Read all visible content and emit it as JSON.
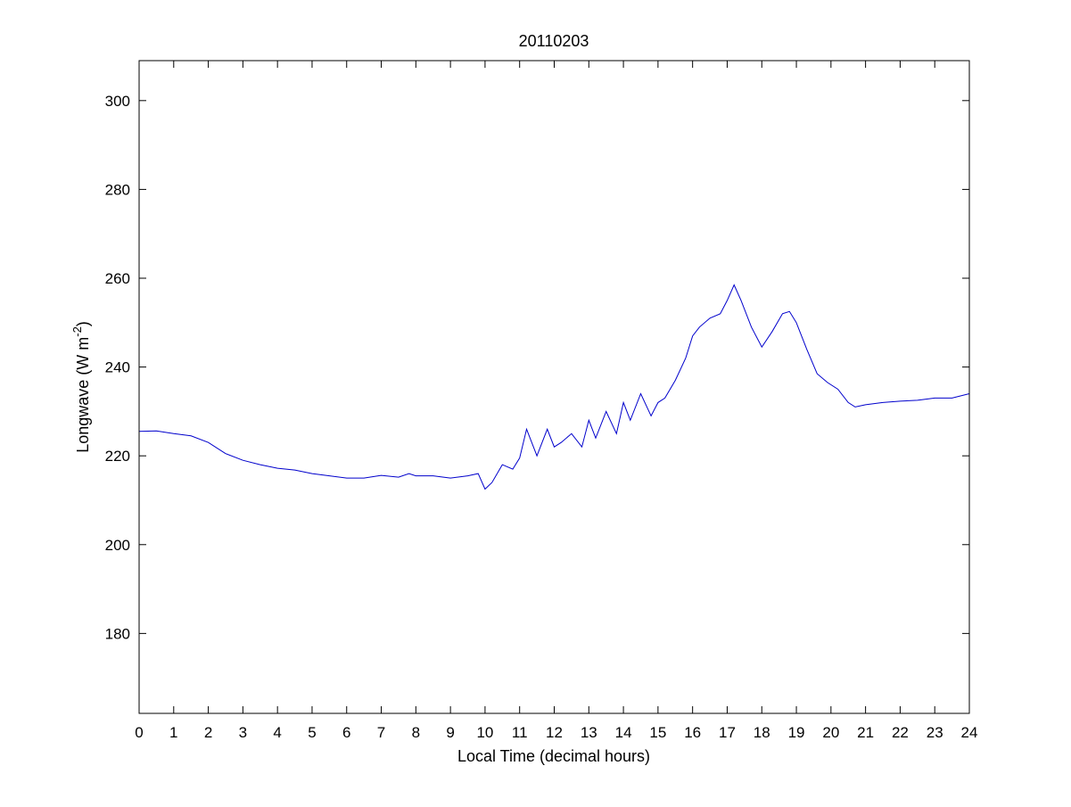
{
  "chart_data": {
    "type": "line",
    "title": "20110203",
    "xlabel": "Local Time (decimal hours)",
    "ylabel": {
      "base": "Longwave (W m",
      "exponent": "-2",
      "close": ")"
    },
    "xlim": [
      0,
      24
    ],
    "ylim": [
      162,
      309
    ],
    "xticks": [
      0,
      1,
      2,
      3,
      4,
      5,
      6,
      7,
      8,
      9,
      10,
      11,
      12,
      13,
      14,
      15,
      16,
      17,
      18,
      19,
      20,
      21,
      22,
      23,
      24
    ],
    "xtick_labels": [
      "0",
      "1",
      "2",
      "3",
      "4",
      "5",
      "6",
      "7",
      "8",
      "9",
      "10",
      "11",
      "12",
      "13",
      "14",
      "15",
      "16",
      "17",
      "18",
      "19",
      "20",
      "21",
      "22",
      "23",
      "24"
    ],
    "yticks": [
      180,
      200,
      220,
      240,
      260,
      280,
      300
    ],
    "ytick_labels": [
      "180",
      "200",
      "220",
      "240",
      "260",
      "280",
      "300"
    ],
    "grid": false,
    "legend": "none",
    "line_color": "#0000cc",
    "series": [
      {
        "x": [
          0,
          0.5,
          1,
          1.5,
          2,
          2.5,
          3,
          3.5,
          4,
          4.5,
          5,
          5.5,
          6,
          6.5,
          7,
          7.5,
          7.8,
          8,
          8.5,
          9,
          9.5,
          9.8,
          10,
          10.2,
          10.5,
          10.8,
          11,
          11.2,
          11.5,
          11.8,
          12,
          12.2,
          12.5,
          12.8,
          13,
          13.2,
          13.5,
          13.8,
          14,
          14.2,
          14.5,
          14.8,
          15,
          15.2,
          15.5,
          15.8,
          16,
          16.2,
          16.5,
          16.8,
          17,
          17.2,
          17.4,
          17.7,
          18,
          18.3,
          18.6,
          18.8,
          19,
          19.3,
          19.6,
          19.9,
          20.2,
          20.5,
          20.7,
          21,
          21.5,
          22,
          22.5,
          23,
          23.5,
          24
        ],
        "y": [
          225.5,
          225.6,
          225,
          224.5,
          223,
          220.5,
          219,
          218,
          217.2,
          216.8,
          216,
          215.5,
          215,
          215,
          215.6,
          215.2,
          216,
          215.5,
          215.5,
          215,
          215.5,
          216,
          212.5,
          214,
          218,
          217,
          219.5,
          226,
          220,
          226,
          222,
          223,
          225,
          222,
          228,
          224,
          230,
          225,
          232,
          228,
          234,
          229,
          232,
          233,
          237,
          242,
          247,
          249,
          251,
          252,
          255,
          258.5,
          255,
          249,
          244.5,
          248,
          252,
          252.5,
          250,
          244,
          238.5,
          236.5,
          235,
          232,
          231,
          231.5,
          232,
          232.3,
          232.5,
          233,
          233,
          234
        ]
      }
    ]
  }
}
